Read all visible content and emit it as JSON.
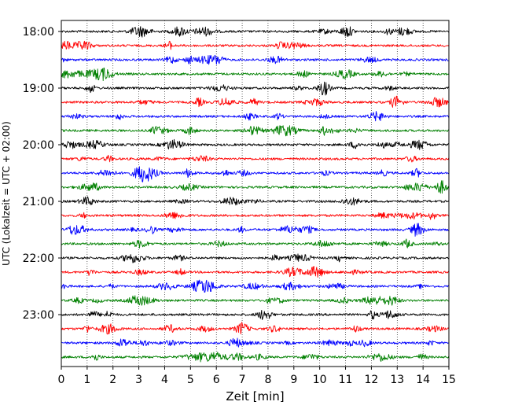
{
  "chart_data": {
    "type": "line",
    "title": "",
    "xlabel": "Zeit  [min]",
    "ylabel": "UTC (Lokalzeit = UTC + 02:00)",
    "xlim": [
      0,
      15
    ],
    "x_ticks": [
      "0",
      "1",
      "2",
      "3",
      "4",
      "5",
      "6",
      "7",
      "8",
      "9",
      "10",
      "11",
      "12",
      "13",
      "14",
      "15"
    ],
    "y_ticks": [
      "18:00",
      "19:00",
      "20:00",
      "21:00",
      "22:00",
      "23:00"
    ],
    "grid": "vertical dotted",
    "trace_colors": [
      "#000000",
      "#ff0000",
      "#0000ff",
      "#008000"
    ],
    "traces_start": "18:00",
    "trace_interval_min": 15,
    "trace_count": 24
  }
}
